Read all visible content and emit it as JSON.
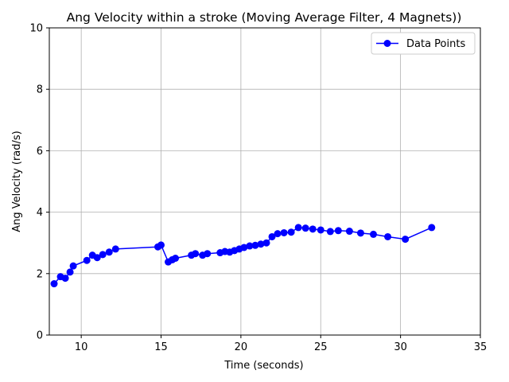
{
  "chart_data": {
    "type": "line",
    "title": "Ang Velocity within a stroke (Moving Average Filter, 4 Magnets))",
    "xlabel": "Time (seconds)",
    "ylabel": "Ang Velocity (rad/s)",
    "xlim": [
      8,
      35
    ],
    "ylim": [
      0,
      10
    ],
    "xticks": [
      10,
      15,
      20,
      25,
      30,
      35
    ],
    "yticks": [
      0,
      2,
      4,
      6,
      8,
      10
    ],
    "grid": true,
    "legend_position": "upper-right",
    "series": [
      {
        "name": "Data Points",
        "color": "#0000ff",
        "marker": "circle",
        "points": [
          [
            8.3,
            1.67
          ],
          [
            8.7,
            1.9
          ],
          [
            9.0,
            1.85
          ],
          [
            9.3,
            2.05
          ],
          [
            9.5,
            2.25
          ],
          [
            10.35,
            2.43
          ],
          [
            10.7,
            2.6
          ],
          [
            11.0,
            2.52
          ],
          [
            11.35,
            2.62
          ],
          [
            11.75,
            2.7
          ],
          [
            12.15,
            2.8
          ],
          [
            14.8,
            2.87
          ],
          [
            15.0,
            2.93
          ],
          [
            15.45,
            2.38
          ],
          [
            15.7,
            2.45
          ],
          [
            15.9,
            2.5
          ],
          [
            16.9,
            2.6
          ],
          [
            17.15,
            2.65
          ],
          [
            17.6,
            2.6
          ],
          [
            17.9,
            2.65
          ],
          [
            18.7,
            2.68
          ],
          [
            19.0,
            2.72
          ],
          [
            19.3,
            2.7
          ],
          [
            19.6,
            2.75
          ],
          [
            19.9,
            2.8
          ],
          [
            20.2,
            2.85
          ],
          [
            20.55,
            2.9
          ],
          [
            20.9,
            2.92
          ],
          [
            21.25,
            2.96
          ],
          [
            21.6,
            3.0
          ],
          [
            21.95,
            3.2
          ],
          [
            22.3,
            3.3
          ],
          [
            22.7,
            3.33
          ],
          [
            23.15,
            3.35
          ],
          [
            23.6,
            3.5
          ],
          [
            24.05,
            3.48
          ],
          [
            24.5,
            3.45
          ],
          [
            25.0,
            3.42
          ],
          [
            25.6,
            3.37
          ],
          [
            26.1,
            3.4
          ],
          [
            26.8,
            3.38
          ],
          [
            27.5,
            3.32
          ],
          [
            28.3,
            3.28
          ],
          [
            29.2,
            3.2
          ],
          [
            30.3,
            3.12
          ],
          [
            31.95,
            3.5
          ]
        ]
      }
    ]
  }
}
